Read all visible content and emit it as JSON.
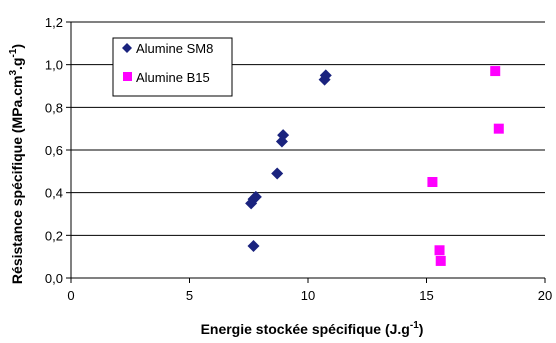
{
  "chart_data": {
    "type": "scatter",
    "xlabel_main": "Energie stockée spécifique (J.g",
    "xlabel_sup": "-1",
    "xlabel_end": ")",
    "ylabel_main": "Résistance spécifique (MPa.cm",
    "ylabel_sup1": "3",
    "ylabel_mid": ".g",
    "ylabel_sup2": "-1",
    "ylabel_end": ")",
    "xlim": [
      0,
      20
    ],
    "ylim": [
      0,
      1.2
    ],
    "x_ticks": [
      "0",
      "5",
      "10",
      "15",
      "20"
    ],
    "y_ticks": [
      "0,0",
      "0,2",
      "0,4",
      "0,6",
      "0,8",
      "1,0",
      "1,2"
    ],
    "grid": "horizontal",
    "legend_position": "top-left",
    "series": [
      {
        "name": "Alumine SM8",
        "marker": "diamond",
        "color": "#1a237e",
        "x": [
          7.6,
          7.7,
          7.8,
          7.7,
          8.7,
          8.9,
          8.95,
          10.7,
          10.75
        ],
        "y": [
          0.35,
          0.37,
          0.38,
          0.15,
          0.49,
          0.64,
          0.67,
          0.93,
          0.95
        ]
      },
      {
        "name": "Alumine B15",
        "marker": "square",
        "color": "#ff00ff",
        "x": [
          15.25,
          15.55,
          15.6,
          17.9,
          18.05
        ],
        "y": [
          0.45,
          0.13,
          0.08,
          0.97,
          0.7
        ]
      }
    ]
  }
}
